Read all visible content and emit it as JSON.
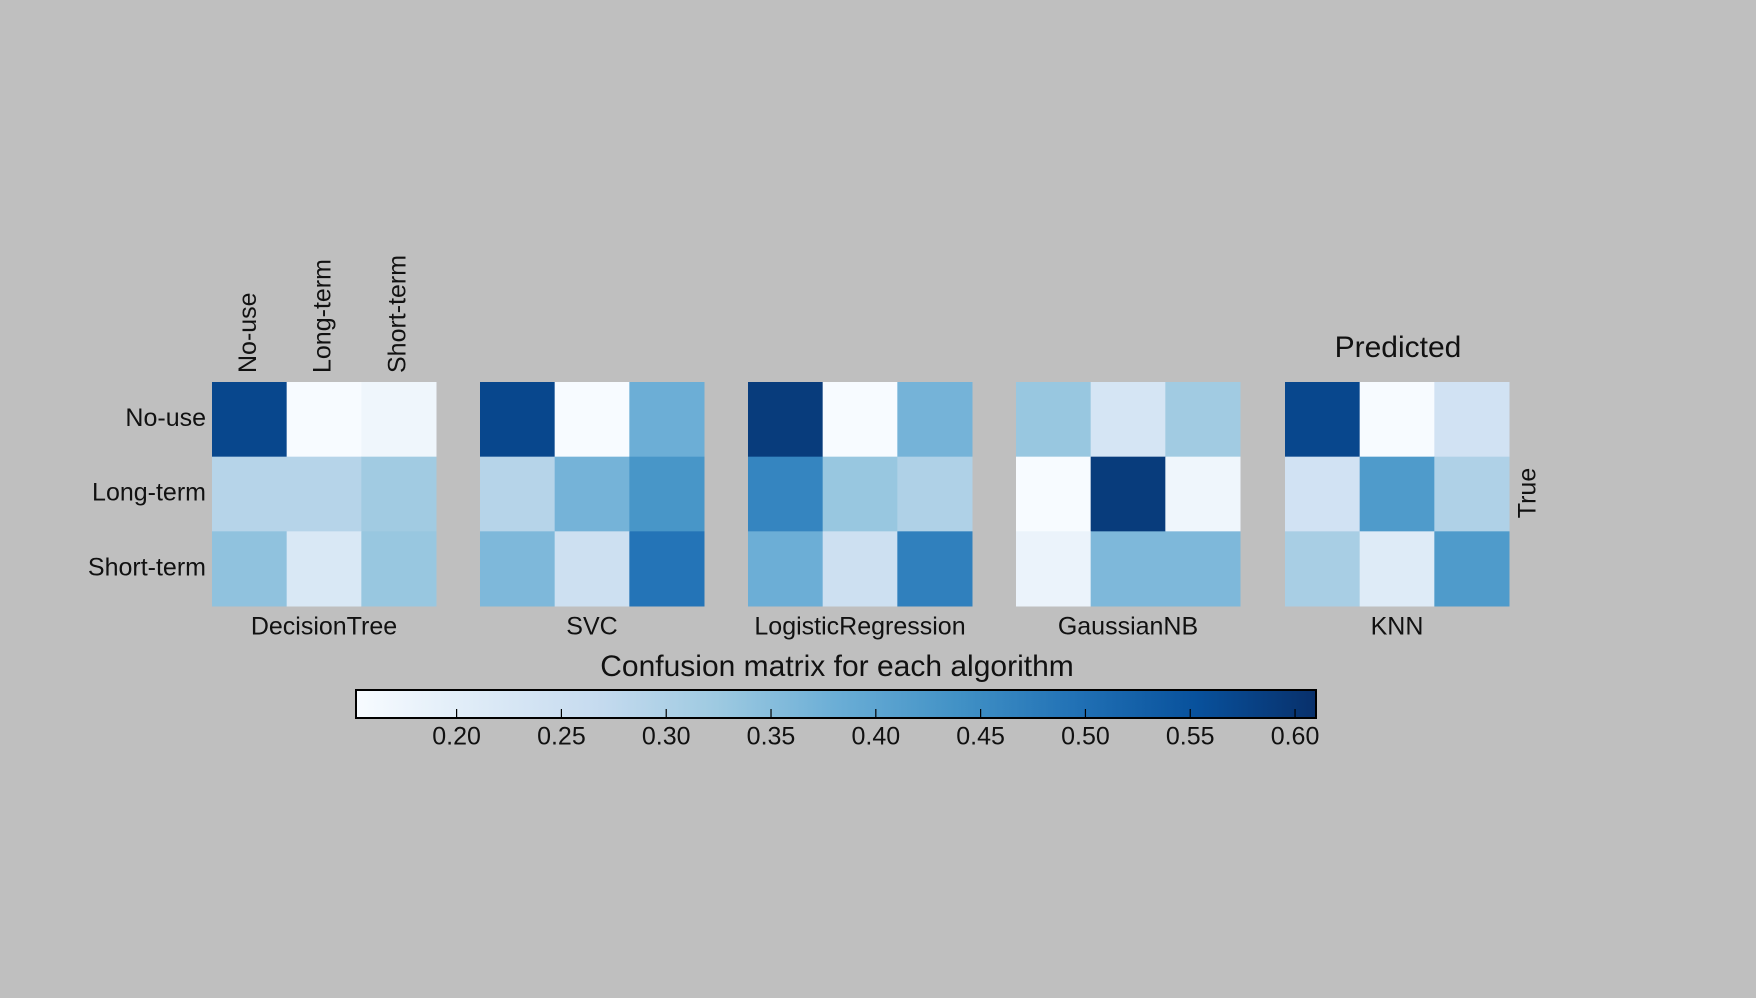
{
  "chart_data": {
    "type": "heatmap",
    "title": "Confusion matrix for each algorithm",
    "xlabel": "Predicted",
    "ylabel": "True",
    "classes": [
      "No-use",
      "Long-term",
      "Short-term"
    ],
    "colormap": "Blues",
    "panels": [
      {
        "name": "DecisionTree",
        "values": [
          [
            0.57,
            0.15,
            0.17
          ],
          [
            0.29,
            0.29,
            0.32
          ],
          [
            0.34,
            0.22,
            0.33
          ]
        ]
      },
      {
        "name": "SVC",
        "values": [
          [
            0.57,
            0.15,
            0.38
          ],
          [
            0.29,
            0.37,
            0.43
          ],
          [
            0.36,
            0.25,
            0.49
          ]
        ]
      },
      {
        "name": "LogisticRegression",
        "values": [
          [
            0.59,
            0.15,
            0.37
          ],
          [
            0.46,
            0.33,
            0.3
          ],
          [
            0.38,
            0.25,
            0.47
          ]
        ]
      },
      {
        "name": "GaussianNB",
        "values": [
          [
            0.33,
            0.23,
            0.32
          ],
          [
            0.15,
            0.59,
            0.17
          ],
          [
            0.18,
            0.36,
            0.36
          ]
        ]
      },
      {
        "name": "KNN",
        "values": [
          [
            0.57,
            0.15,
            0.24
          ],
          [
            0.24,
            0.42,
            0.3
          ],
          [
            0.31,
            0.21,
            0.42
          ]
        ]
      }
    ],
    "clim": [
      0.152,
      0.61
    ],
    "cticks": [
      {
        "value": 0.2,
        "label": "0.20"
      },
      {
        "value": 0.25,
        "label": "0.25"
      },
      {
        "value": 0.3,
        "label": "0.30"
      },
      {
        "value": 0.35,
        "label": "0.35"
      },
      {
        "value": 0.4,
        "label": "0.40"
      },
      {
        "value": 0.45,
        "label": "0.45"
      },
      {
        "value": 0.5,
        "label": "0.50"
      },
      {
        "value": 0.55,
        "label": "0.55"
      },
      {
        "value": 0.6,
        "label": "0.60"
      }
    ]
  }
}
